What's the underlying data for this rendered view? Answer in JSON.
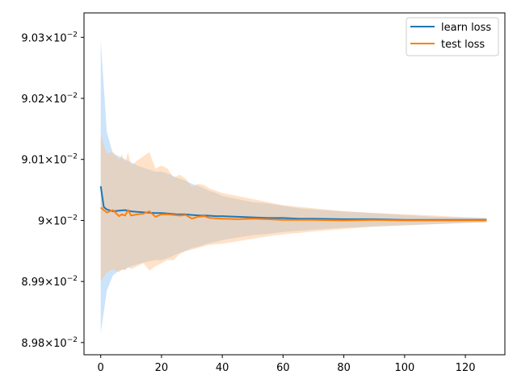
{
  "chart_data": {
    "type": "line",
    "title": "",
    "xlabel": "",
    "ylabel": "",
    "xlim": [
      -5.5,
      133
    ],
    "ylim": [
      0.08978,
      0.09034
    ],
    "x_ticks": [
      0,
      20,
      40,
      60,
      80,
      100,
      120
    ],
    "y_ticks": [
      {
        "value": 0.0898,
        "mantissa": "8.98"
      },
      {
        "value": 0.0899,
        "mantissa": "8.99"
      },
      {
        "value": 0.09,
        "mantissa": "9"
      },
      {
        "value": 0.0901,
        "mantissa": "9.01"
      },
      {
        "value": 0.0902,
        "mantissa": "9.02"
      },
      {
        "value": 0.0903,
        "mantissa": "9.03"
      }
    ],
    "y_tick_suffix": "×10",
    "y_tick_exponent": "−2",
    "legend_position": "top-right",
    "grid": false,
    "series": [
      {
        "name": "learn loss",
        "color": "#1f77b4",
        "band_color": "#8fc3f4",
        "x": [
          0,
          1,
          2,
          4,
          6,
          8,
          10,
          12,
          15,
          18,
          20,
          23,
          25,
          28,
          30,
          33,
          35,
          38,
          40,
          45,
          50,
          55,
          60,
          65,
          70,
          80,
          90,
          100,
          110,
          120,
          127
        ],
        "mean": [
          0.090056,
          0.090022,
          0.090018,
          0.090015,
          0.090016,
          0.090017,
          0.090015,
          0.090014,
          0.090013,
          0.090012,
          0.090012,
          0.090011,
          0.09001,
          0.09001,
          0.090009,
          0.090008,
          0.090008,
          0.090007,
          0.090007,
          0.090006,
          0.090005,
          0.090004,
          0.090004,
          0.090003,
          0.090003,
          0.090002,
          0.090002,
          0.090001,
          0.090001,
          0.090001,
          0.090001
        ],
        "upper": [
          0.090295,
          0.09022,
          0.090145,
          0.09011,
          0.090105,
          0.0901,
          0.090095,
          0.09009,
          0.090085,
          0.09008,
          0.09008,
          0.090075,
          0.09007,
          0.090065,
          0.09006,
          0.090055,
          0.09005,
          0.090045,
          0.09004,
          0.090035,
          0.09003,
          0.090028,
          0.090024,
          0.09002,
          0.090018,
          0.090015,
          0.090012,
          0.090009,
          0.090006,
          0.090005,
          0.090004
        ],
        "lower": [
          0.089815,
          0.08985,
          0.089885,
          0.08991,
          0.089918,
          0.08992,
          0.089925,
          0.089928,
          0.089932,
          0.089935,
          0.089935,
          0.08994,
          0.089945,
          0.08995,
          0.089955,
          0.089958,
          0.089962,
          0.089965,
          0.089968,
          0.089972,
          0.089976,
          0.089978,
          0.089981,
          0.089983,
          0.089985,
          0.089988,
          0.08999,
          0.089992,
          0.089994,
          0.089996,
          0.089997
        ]
      },
      {
        "name": "test loss",
        "color": "#ff7f0e",
        "band_color": "#ffbf86",
        "x": [
          0,
          2,
          4,
          6,
          7,
          8,
          9,
          10,
          12,
          14,
          16,
          18,
          20,
          22,
          24,
          26,
          28,
          30,
          32,
          34,
          36,
          40,
          45,
          50,
          55,
          60,
          70,
          80,
          90,
          100,
          110,
          120,
          127
        ],
        "mean": [
          0.090021,
          0.090013,
          0.090017,
          0.090007,
          0.09001,
          0.090008,
          0.090017,
          0.090008,
          0.09001,
          0.090011,
          0.090015,
          0.090006,
          0.09001,
          0.09001,
          0.090009,
          0.090008,
          0.090009,
          0.090003,
          0.090006,
          0.090007,
          0.090004,
          0.090003,
          0.090002,
          0.090003,
          0.090002,
          0.090001,
          0.090001,
          0.09,
          0.090001,
          0.09,
          0.09,
          0.09,
          0.09
        ],
        "upper": [
          0.09014,
          0.09011,
          0.090112,
          0.0901,
          0.090108,
          0.090095,
          0.090112,
          0.09009,
          0.090098,
          0.090105,
          0.090112,
          0.090085,
          0.09009,
          0.090085,
          0.09007,
          0.090075,
          0.090068,
          0.090055,
          0.09006,
          0.090058,
          0.090052,
          0.090045,
          0.09004,
          0.090035,
          0.09003,
          0.090025,
          0.09002,
          0.090015,
          0.090012,
          0.09001,
          0.090008,
          0.090005,
          0.090004
        ],
        "lower": [
          0.0899,
          0.089915,
          0.08992,
          0.089915,
          0.08992,
          0.089918,
          0.089925,
          0.08992,
          0.089925,
          0.08993,
          0.089918,
          0.089925,
          0.08993,
          0.089935,
          0.089935,
          0.089945,
          0.08995,
          0.089952,
          0.089955,
          0.089958,
          0.08996,
          0.089962,
          0.089966,
          0.08997,
          0.089974,
          0.089977,
          0.089982,
          0.089986,
          0.08999,
          0.089992,
          0.089994,
          0.089996,
          0.089997
        ]
      }
    ]
  }
}
